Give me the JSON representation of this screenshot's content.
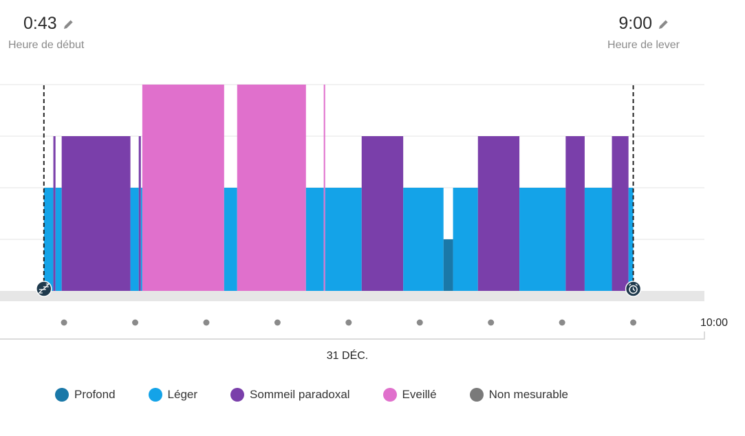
{
  "header": {
    "start": {
      "time": "0:43",
      "caption": "Heure de début"
    },
    "end": {
      "time": "9:00",
      "caption": "Heure de lever"
    }
  },
  "chart_data": {
    "type": "bar",
    "stage_levels": {
      "profond": 1,
      "leger": 2,
      "paradoxal": 3,
      "eveille": 4
    },
    "stage_colors": {
      "profond": "#1a78a8",
      "leger": "#14a3e8",
      "paradoxal": "#7a3faa",
      "eveille": "#e070cc",
      "non_mesurable": "#7a7a7a"
    },
    "segments": [
      {
        "start": 0.717,
        "end": 0.85,
        "stage": "leger"
      },
      {
        "start": 0.85,
        "end": 0.88,
        "stage": "paradoxal"
      },
      {
        "start": 0.88,
        "end": 0.967,
        "stage": "leger"
      },
      {
        "start": 0.967,
        "end": 1.933,
        "stage": "paradoxal"
      },
      {
        "start": 1.933,
        "end": 2.05,
        "stage": "leger"
      },
      {
        "start": 2.05,
        "end": 2.08,
        "stage": "paradoxal"
      },
      {
        "start": 2.08,
        "end": 2.1,
        "stage": "leger"
      },
      {
        "start": 2.1,
        "end": 3.25,
        "stage": "eveille"
      },
      {
        "start": 3.25,
        "end": 3.433,
        "stage": "leger"
      },
      {
        "start": 3.433,
        "end": 4.4,
        "stage": "eveille"
      },
      {
        "start": 4.4,
        "end": 4.65,
        "stage": "leger"
      },
      {
        "start": 4.65,
        "end": 4.67,
        "stage": "eveille"
      },
      {
        "start": 4.67,
        "end": 5.183,
        "stage": "leger"
      },
      {
        "start": 5.183,
        "end": 5.767,
        "stage": "paradoxal"
      },
      {
        "start": 5.767,
        "end": 6.333,
        "stage": "leger"
      },
      {
        "start": 6.333,
        "end": 6.467,
        "stage": "profond"
      },
      {
        "start": 6.467,
        "end": 6.817,
        "stage": "leger"
      },
      {
        "start": 6.817,
        "end": 7.4,
        "stage": "paradoxal"
      },
      {
        "start": 7.4,
        "end": 8.05,
        "stage": "leger"
      },
      {
        "start": 8.05,
        "end": 8.317,
        "stage": "paradoxal"
      },
      {
        "start": 8.317,
        "end": 8.7,
        "stage": "leger"
      },
      {
        "start": 8.7,
        "end": 8.933,
        "stage": "paradoxal"
      },
      {
        "start": 8.933,
        "end": 9.0,
        "stage": "leger"
      }
    ],
    "x_range": [
      0.1,
      10.0
    ],
    "tick_hours": [
      1,
      2,
      3,
      4,
      5,
      6,
      7,
      8,
      9
    ],
    "x_end_label": "10:00",
    "date_label": "31 DÉC.",
    "start_hour": 0.717,
    "end_hour": 9.0,
    "grid": true
  },
  "legend": [
    {
      "label": "Profond",
      "color": "#1a78a8"
    },
    {
      "label": "Léger",
      "color": "#14a3e8"
    },
    {
      "label": "Sommeil paradoxal",
      "color": "#7a3faa"
    },
    {
      "label": "Eveillé",
      "color": "#e070cc"
    },
    {
      "label": "Non mesurable",
      "color": "#7a7a7a"
    }
  ],
  "icons": {
    "edit": "pencil-icon",
    "sleep_marker": "sleep-zzz-icon",
    "wake_marker": "alarm-clock-icon"
  }
}
